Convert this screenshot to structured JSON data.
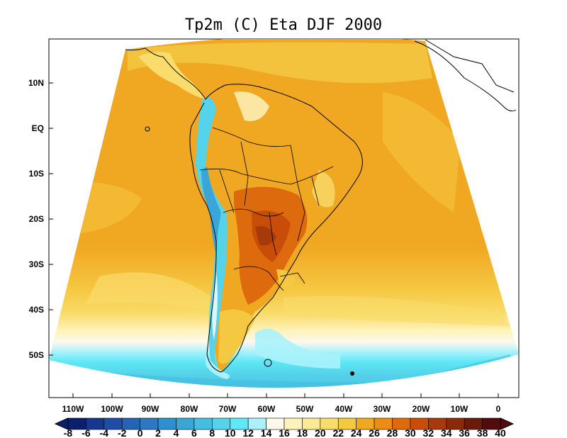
{
  "title": "Tp2m (C) Eta DJF 2000",
  "lat_ticks": [
    "10N",
    "EQ",
    "10S",
    "20S",
    "30S",
    "40S",
    "50S"
  ],
  "lon_ticks": [
    "110W",
    "100W",
    "90W",
    "80W",
    "70W",
    "60W",
    "50W",
    "40W",
    "30W",
    "20W",
    "10W",
    "0"
  ],
  "colorbar": {
    "labels": [
      "-8",
      "-6",
      "-4",
      "-2",
      "0",
      "2",
      "4",
      "6",
      "8",
      "10",
      "12",
      "14",
      "16",
      "18",
      "20",
      "22",
      "24",
      "26",
      "28",
      "30",
      "32",
      "34",
      "36",
      "38",
      "40"
    ],
    "colors": [
      "#0a1f6e",
      "#16368f",
      "#1e4da6",
      "#2563b5",
      "#2a79c2",
      "#2f8fd0",
      "#3aa6d8",
      "#45bde0",
      "#55d3ea",
      "#5fe8f5",
      "#aaf2fb",
      "#fdf8ec",
      "#fdf2b8",
      "#fce995",
      "#f9dc6b",
      "#f5c842",
      "#f0a722",
      "#eb8d14",
      "#dd6a0c",
      "#c84d09",
      "#a73a0a",
      "#8b2a09",
      "#6b1909",
      "#520c0c"
    ]
  },
  "map_fields": {
    "ocean_dominant_range": "26-28",
    "max_region": "Gran Chaco / Paraguay 34-36",
    "andes_min": "4-12",
    "southern_ocean": "6-12"
  }
}
